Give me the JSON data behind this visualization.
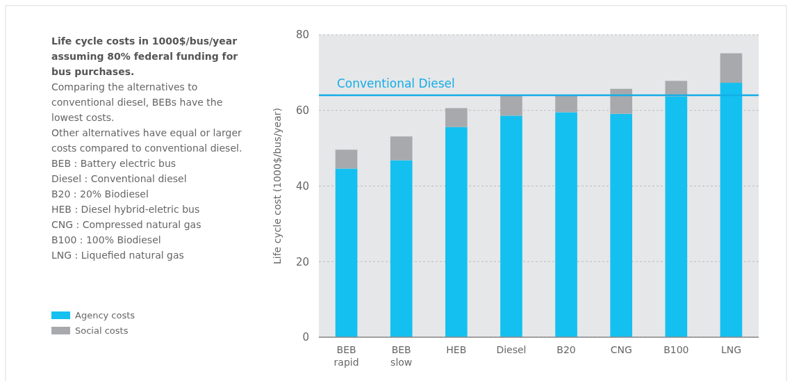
{
  "chart_data": {
    "type": "bar",
    "stacked": true,
    "title": "Life cycle costs in 1000$/bus/year assuming 80% federal funding for bus purchases.",
    "annotations": [
      "Comparing the alternatives to conventional diesel, BEBs have the lowest costs.",
      "Other alternatives have equal or larger costs compared to conventional diesel.",
      "BEB : Battery electric bus",
      "Diesel : Conventional diesel",
      "B20 : 20% Biodiesel",
      "HEB : Diesel hybrid-eletric bus",
      "CNG : Compressed natural gas",
      "B100 : 100% Biodiesel",
      "LNG : Liquefied natural gas"
    ],
    "ylabel": "Life cycle cost (1000$/bus/year)",
    "categories": [
      "BEB\nrapid",
      "BEB\nslow",
      "HEB",
      "Diesel",
      "B20",
      "CNG",
      "B100",
      "LNG"
    ],
    "series": [
      {
        "name": "Agency costs",
        "color": "#14c0f0",
        "values": [
          44.6,
          46.8,
          55.6,
          58.6,
          59.5,
          59.1,
          63.7,
          67.3
        ]
      },
      {
        "name": "Social costs",
        "color": "#a7a9ac",
        "values": [
          5.0,
          6.3,
          5.0,
          5.4,
          4.5,
          6.6,
          4.1,
          7.8
        ]
      }
    ],
    "ylim": [
      0,
      80
    ],
    "yticks": [
      0,
      20,
      40,
      60,
      80
    ],
    "grid": "y",
    "legend": "left",
    "ref_lines": [
      {
        "axis": "y",
        "value": 64,
        "label": "Conventional Diesel",
        "color": "#14ade6"
      }
    ]
  }
}
